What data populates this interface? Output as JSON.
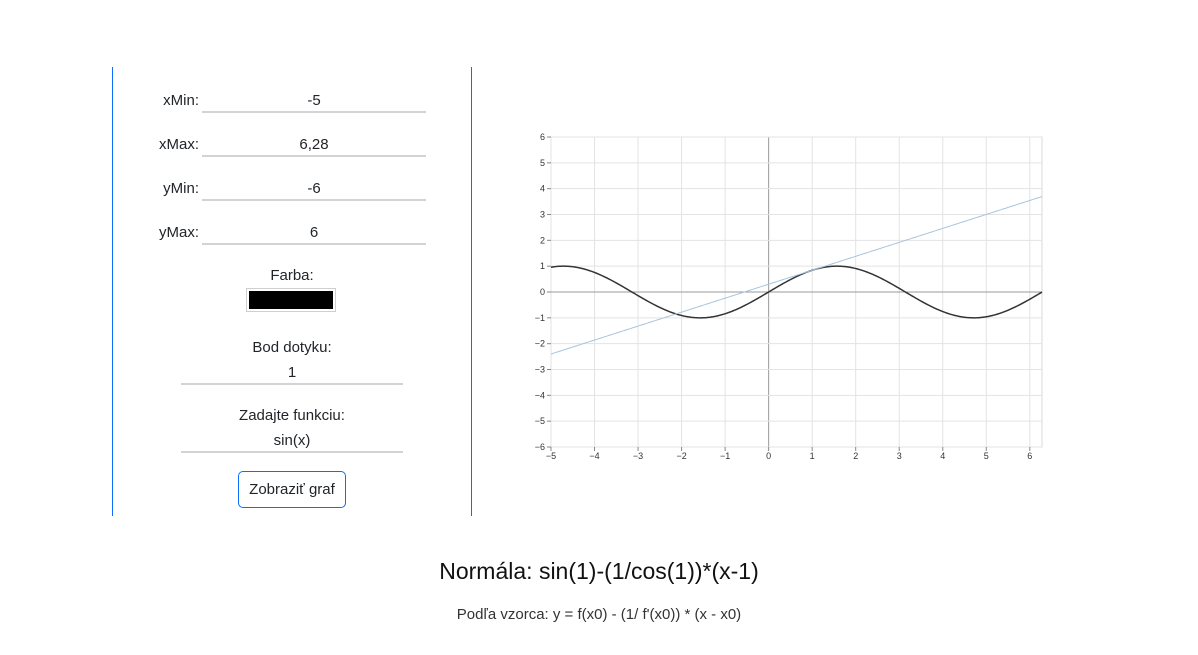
{
  "form": {
    "xmin": {
      "label": "xMin:",
      "value": "-5"
    },
    "xmax": {
      "label": "xMax:",
      "value": "6,28"
    },
    "ymin": {
      "label": "yMin:",
      "value": "-6"
    },
    "ymax": {
      "label": "yMax:",
      "value": "6"
    },
    "color": {
      "label": "Farba:",
      "value": "#000000"
    },
    "tangent_point": {
      "label": "Bod dotyku:",
      "value": "1"
    },
    "function": {
      "label": "Zadajte funkciu:",
      "value": "sin(x)"
    },
    "submit_label": "Zobraziť graf"
  },
  "result": {
    "normal": "Normála: sin(1)-(1/cos(1))*(x-1)",
    "formula": "Podľa vzorca: y = f(x0) - (1/ f'(x0)) * (x - x0)"
  },
  "chart_data": {
    "type": "line",
    "xlim": [
      -5,
      6.28
    ],
    "ylim": [
      -6,
      6
    ],
    "x_ticks": [
      "−5",
      "−4",
      "−3",
      "−2",
      "−1",
      "0",
      "1",
      "2",
      "3",
      "4",
      "5",
      "6"
    ],
    "y_ticks": [
      "6",
      "5",
      "4",
      "3",
      "2",
      "1",
      "0",
      "−1",
      "−2",
      "−3",
      "−4",
      "−5",
      "−6"
    ],
    "grid": true,
    "series": [
      {
        "function": "sin(x)",
        "color": "#333333"
      },
      {
        "function": "sin(1) + 0.5403*(x - 1)",
        "color": "#a9c4dd"
      }
    ]
  }
}
